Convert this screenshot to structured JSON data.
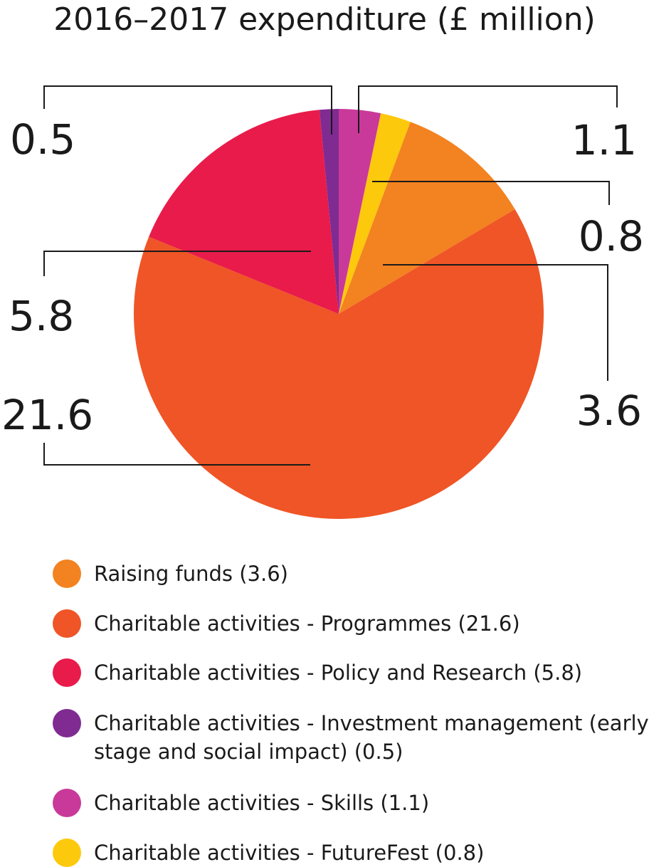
{
  "chart_data": {
    "type": "pie",
    "title": "2016–2017 expenditure (£ million)",
    "unit": "£ million",
    "start_angle_deg": 0,
    "direction": "clockwise",
    "slices": [
      {
        "label": "Charitable activities - Skills (1.1)",
        "value": 1.1,
        "value_label": "1.1",
        "color": "#c9399a"
      },
      {
        "label": "Charitable activities - FutureFest (0.8)",
        "value": 0.8,
        "value_label": "0.8",
        "color": "#fdc90c"
      },
      {
        "label": "Raising funds (3.6)",
        "value": 3.6,
        "value_label": "3.6",
        "color": "#f38221"
      },
      {
        "label": "Charitable activities - Programmes (21.6)",
        "value": 21.6,
        "value_label": "21.6",
        "color": "#ef5526"
      },
      {
        "label": "Charitable activities - Policy and Research (5.8)",
        "value": 5.8,
        "value_label": "5.8",
        "color": "#e91b4a"
      },
      {
        "label": "Charitable activities - Investment management (early stage and social impact) (0.5)",
        "value": 0.5,
        "value_label": "0.5",
        "color": "#7f2b91"
      }
    ],
    "legend": [
      {
        "text": "Raising funds (3.6)",
        "color": "#f38221"
      },
      {
        "text": "Charitable activities - Programmes (21.6)",
        "color": "#ef5526"
      },
      {
        "text": "Charitable activities - Policy and Research (5.8)",
        "color": "#e91b4a"
      },
      {
        "text": "Charitable activities - Investment management (early stage and social impact) (0.5)",
        "color": "#7f2b91"
      },
      {
        "text": "Charitable activities - Skills (1.1)",
        "color": "#c9399a"
      },
      {
        "text": "Charitable activities - FutureFest (0.8)",
        "color": "#fdc90c"
      }
    ]
  }
}
